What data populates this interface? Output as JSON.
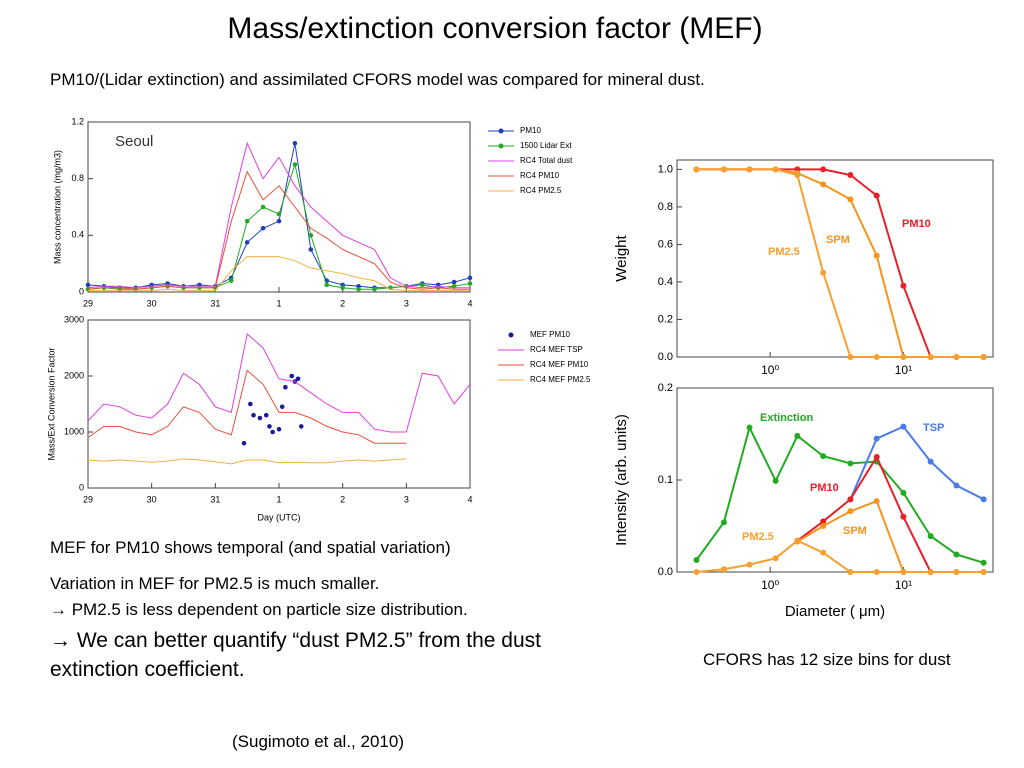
{
  "slide": {
    "title": "Mass/extinction conversion factor (MEF)",
    "subtitle": "PM10/(Lidar extinction) and assimilated CFORS model was compared for mineral dust.",
    "bullets": [
      "MEF for PM10 shows temporal (and spatial variation)",
      "Variation in MEF for PM2.5 is much smaller.",
      "→ PM2.5 is less dependent on particle size distribution.",
      "→ We can better quantify “dust PM2.5” from the dust extinction coefficient."
    ],
    "caption": "CFORS has 12 size bins for dust",
    "citation": "(Sugimoto et al., 2010)"
  },
  "chart_data": [
    {
      "type": "line",
      "ylabel": "Mass concentration (mg/m3)",
      "annotations": [
        {
          "text": "Seoul",
          "color": "#333333"
        }
      ],
      "xlim": [
        0,
        6
      ],
      "xticks": [
        {
          "value": 0,
          "label": "29"
        },
        {
          "value": 1,
          "label": "30"
        },
        {
          "value": 2,
          "label": "31"
        },
        {
          "value": 3,
          "label": "1"
        },
        {
          "value": 4,
          "label": "2"
        },
        {
          "value": 5,
          "label": "3"
        },
        {
          "value": 6,
          "label": "4"
        }
      ],
      "ylim": [
        0,
        1.2
      ],
      "yticks": [
        0,
        0.4,
        0.8,
        1.2
      ],
      "legend": "right",
      "x": [
        0,
        0.25,
        0.5,
        0.75,
        1,
        1.25,
        1.5,
        1.75,
        2,
        2.25,
        2.5,
        2.75,
        3,
        3.25,
        3.5,
        3.75,
        4,
        4.25,
        4.5,
        4.75,
        5,
        5.25,
        5.5,
        5.75,
        6
      ],
      "series": [
        {
          "name": "PM10",
          "color": "#1f3fbf",
          "style": "line+markers",
          "values": [
            0.05,
            0.04,
            0.03,
            0.03,
            0.05,
            0.06,
            0.04,
            0.05,
            0.04,
            0.1,
            0.35,
            0.45,
            0.5,
            1.05,
            0.3,
            0.08,
            0.05,
            0.04,
            0.03,
            0.03,
            0.04,
            0.06,
            0.05,
            0.07,
            0.1
          ]
        },
        {
          "name": "1500 Lidar Ext",
          "color": "#22aa22",
          "style": "line+markers",
          "values": [
            0.02,
            0.03,
            0.02,
            0.02,
            0.03,
            0.04,
            0.03,
            0.03,
            0.03,
            0.08,
            0.5,
            0.6,
            0.55,
            0.9,
            0.4,
            0.05,
            0.03,
            0.02,
            0.02,
            0.03,
            0.04,
            0.05,
            0.03,
            0.04,
            0.06
          ]
        },
        {
          "name": "RC4 Total dust",
          "color": "#e040e0",
          "style": "line",
          "values": [
            0.03,
            0.04,
            0.04,
            0.03,
            0.04,
            0.05,
            0.04,
            0.04,
            0.04,
            0.6,
            1.05,
            0.8,
            0.95,
            0.75,
            0.6,
            0.5,
            0.4,
            0.35,
            0.3,
            0.1,
            0.04,
            0.03,
            0.04,
            0.03,
            0.03
          ]
        },
        {
          "name": "RC4 PM10",
          "color": "#e8503a",
          "style": "line",
          "values": [
            0.02,
            0.03,
            0.03,
            0.02,
            0.03,
            0.04,
            0.03,
            0.03,
            0.03,
            0.5,
            0.85,
            0.65,
            0.75,
            0.6,
            0.45,
            0.38,
            0.3,
            0.25,
            0.2,
            0.07,
            0.03,
            0.02,
            0.03,
            0.02,
            0.02
          ]
        },
        {
          "name": "RC4 PM2.5",
          "color": "#f5b040",
          "style": "line",
          "values": [
            0.01,
            0.01,
            0.01,
            0.01,
            0.01,
            0.02,
            0.01,
            0.01,
            0.01,
            0.15,
            0.25,
            0.25,
            0.25,
            0.22,
            0.17,
            0.15,
            0.13,
            0.1,
            0.08,
            0.02,
            0.01,
            0.01,
            0.01,
            0.01,
            0.01
          ]
        }
      ]
    },
    {
      "type": "line",
      "ylabel": "Mass/Ext Conversion Factor",
      "xlabel": "Day (UTC)",
      "xlim": [
        0,
        6
      ],
      "xticks": [
        {
          "value": 0,
          "label": "29"
        },
        {
          "value": 1,
          "label": "30"
        },
        {
          "value": 2,
          "label": "31"
        },
        {
          "value": 3,
          "label": "1"
        },
        {
          "value": 4,
          "label": "2"
        },
        {
          "value": 5,
          "label": "3"
        },
        {
          "value": 6,
          "label": "4"
        }
      ],
      "ylim": [
        0,
        3000
      ],
      "yticks": [
        0,
        1000,
        2000,
        3000
      ],
      "legend": "right",
      "x": [
        0,
        0.25,
        0.5,
        0.75,
        1,
        1.25,
        1.5,
        1.75,
        2,
        2.25,
        2.5,
        2.75,
        3,
        3.25,
        3.5,
        3.75,
        4,
        4.25,
        4.5,
        4.75,
        5,
        5.25,
        5.5,
        5.75,
        6
      ],
      "series": [
        {
          "name": "MEF  PM10",
          "color": "#1a1a9a",
          "style": "markers",
          "x": [
            2.45,
            2.55,
            2.6,
            2.7,
            2.8,
            2.85,
            2.9,
            3.0,
            3.05,
            3.1,
            3.2,
            3.25,
            3.3,
            3.35
          ],
          "values": [
            800,
            1500,
            1300,
            1250,
            1300,
            1100,
            1000,
            1050,
            1450,
            1800,
            2000,
            1900,
            1950,
            1100
          ]
        },
        {
          "name": "RC4 MEF TSP",
          "color": "#e040e0",
          "style": "line",
          "values": [
            1200,
            1500,
            1450,
            1300,
            1250,
            1500,
            2050,
            1850,
            1450,
            1350,
            2750,
            2500,
            1950,
            1900,
            1700,
            1500,
            1350,
            1350,
            1050,
            1000,
            1000,
            2050,
            2000,
            1500,
            1850
          ]
        },
        {
          "name": "RC4 MEF PM10",
          "color": "#e8503a",
          "style": "line",
          "values": [
            900,
            1100,
            1100,
            1000,
            950,
            1100,
            1450,
            1350,
            1050,
            950,
            2100,
            1850,
            1350,
            1350,
            1250,
            1100,
            1000,
            950,
            800,
            800,
            800,
            null,
            null,
            null,
            null
          ]
        },
        {
          "name": "RC4 MEF PM2.5",
          "color": "#f5b040",
          "style": "line",
          "values": [
            500,
            480,
            500,
            480,
            460,
            480,
            520,
            500,
            470,
            430,
            500,
            500,
            450,
            460,
            450,
            450,
            480,
            500,
            480,
            500,
            520,
            null,
            null,
            null,
            null
          ]
        }
      ]
    },
    {
      "type": "line",
      "ylabel": "Weight",
      "xscale": "log",
      "xlim": [
        0.2,
        47
      ],
      "xticks": [
        {
          "value": 1,
          "label": "10⁰"
        },
        {
          "value": 10,
          "label": "10¹"
        }
      ],
      "ylim": [
        0,
        1.05
      ],
      "yticks": [
        {
          "value": 0,
          "label": "0.0"
        },
        0.2,
        0.4,
        0.6,
        0.8,
        {
          "value": 1,
          "label": "1.0"
        }
      ],
      "annotations": [
        {
          "text": "PM10",
          "color": "#e8202a"
        },
        {
          "text": "SPM",
          "color": "#f7941d"
        },
        {
          "text": "PM2.5",
          "color": "#f7a030"
        }
      ],
      "x": [
        0.28,
        0.45,
        0.7,
        1.1,
        1.6,
        2.5,
        4,
        6.3,
        10,
        16,
        25,
        40
      ],
      "series": [
        {
          "name": "PM10",
          "color": "#e8202a",
          "style": "line+markers",
          "values": [
            1,
            1,
            1,
            1,
            1,
            1,
            0.97,
            0.86,
            0.38,
            0,
            0,
            0
          ]
        },
        {
          "name": "SPM",
          "color": "#f7941d",
          "style": "line+markers",
          "values": [
            1,
            1,
            1,
            1,
            0.98,
            0.92,
            0.84,
            0.54,
            0,
            0,
            0,
            0
          ]
        },
        {
          "name": "PM2.5",
          "color": "#f7a030",
          "style": "line+markers",
          "values": [
            1,
            1,
            1,
            1,
            0.97,
            0.45,
            0,
            0,
            0,
            0,
            0,
            0
          ]
        }
      ]
    },
    {
      "type": "line",
      "ylabel": "Intensity (arb. units)",
      "xlabel": "Diameter ( μm)",
      "xscale": "log",
      "xlim": [
        0.2,
        47
      ],
      "xticks": [
        {
          "value": 1,
          "label": "10⁰"
        },
        {
          "value": 10,
          "label": "10¹"
        }
      ],
      "ylim": [
        0,
        0.2
      ],
      "yticks": [
        {
          "value": 0,
          "label": "0.0"
        },
        0.1,
        0.2
      ],
      "annotations": [
        {
          "text": "Extinction",
          "color": "#22aa22"
        },
        {
          "text": "TSP",
          "color": "#4a7ce8"
        },
        {
          "text": "PM10",
          "color": "#e8202a"
        },
        {
          "text": "SPM",
          "color": "#f7941d"
        },
        {
          "text": "PM2.5",
          "color": "#f7a030"
        }
      ],
      "x": [
        0.28,
        0.45,
        0.7,
        1.1,
        1.6,
        2.5,
        4,
        6.3,
        10,
        16,
        25,
        40
      ],
      "series": [
        {
          "name": "Extinction",
          "color": "#22aa22",
          "style": "line+markers",
          "values": [
            0.013,
            0.054,
            0.157,
            0.099,
            0.148,
            0.126,
            0.118,
            0.12,
            0.086,
            0.039,
            0.019,
            0.01
          ]
        },
        {
          "name": "TSP",
          "color": "#4a7ce8",
          "style": "line+markers",
          "values": [
            null,
            null,
            null,
            null,
            null,
            null,
            0.079,
            0.145,
            0.158,
            0.12,
            0.094,
            0.079
          ]
        },
        {
          "name": "PM10",
          "color": "#e8202a",
          "style": "line+markers",
          "values": [
            null,
            null,
            null,
            null,
            0.034,
            0.055,
            0.079,
            0.125,
            0.06,
            0,
            null,
            null
          ]
        },
        {
          "name": "SPM",
          "color": "#f7941d",
          "style": "line+markers",
          "values": [
            null,
            null,
            null,
            null,
            0.033,
            0.05,
            0.066,
            0.077,
            0,
            0,
            0,
            0
          ]
        },
        {
          "name": "PM2.5",
          "color": "#f7a030",
          "style": "line+markers",
          "values": [
            0,
            0.003,
            0.008,
            0.015,
            0.034,
            0.021,
            0,
            0,
            0,
            0,
            0,
            0
          ]
        }
      ]
    }
  ]
}
